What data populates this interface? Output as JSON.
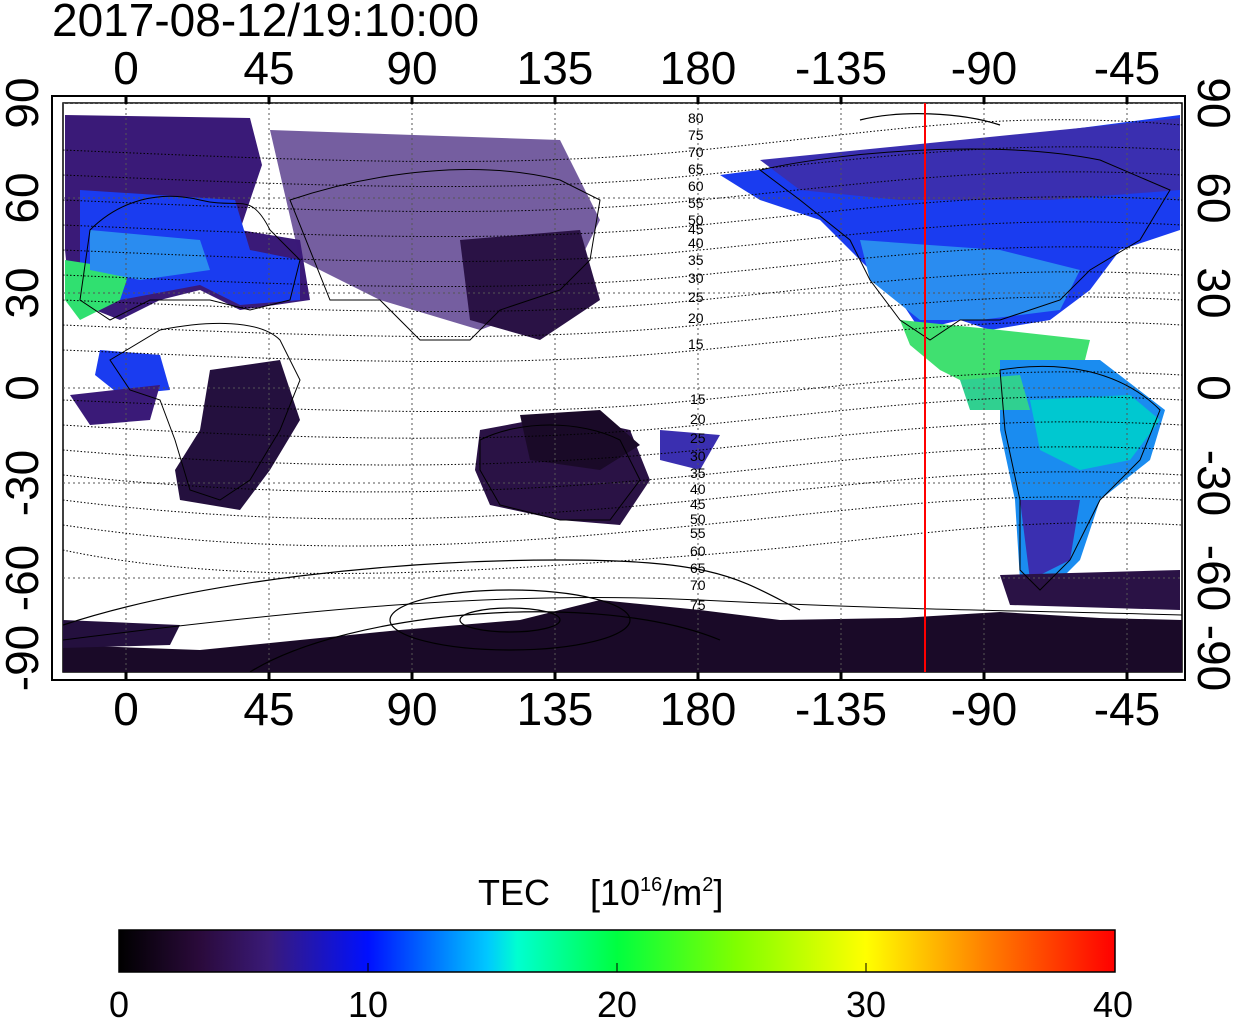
{
  "timestamp": "2017-08-12/19:10:00",
  "top_lon_labels": [
    "0",
    "45",
    "90",
    "135",
    "180",
    "-135",
    "-90",
    "-45"
  ],
  "bottom_lon_labels": [
    "0",
    "45",
    "90",
    "135",
    "180",
    "-135",
    "-90",
    "-45"
  ],
  "left_lat_labels": [
    "90",
    "60",
    "30",
    "0",
    "-30",
    "-60",
    "-90"
  ],
  "right_lat_labels": [
    "90",
    "60",
    "30",
    "0",
    "-30",
    "-60",
    "-90"
  ],
  "contour_labels_north": [
    "80",
    "75",
    "70",
    "65",
    "60",
    "55",
    "50",
    "45",
    "40",
    "35",
    "30",
    "25",
    "20",
    "15"
  ],
  "contour_labels_south": [
    "15",
    "20",
    "25",
    "30",
    "35",
    "40",
    "45",
    "50",
    "55",
    "60",
    "65",
    "70",
    "75"
  ],
  "colorbar": {
    "title": "TEC",
    "unit_base": "[10",
    "unit_exp": "16",
    "unit_mid": "/m",
    "unit_sq": "2",
    "unit_end": "]",
    "ticks": [
      "0",
      "10",
      "20",
      "30",
      "40"
    ],
    "min": 0,
    "max": 40
  },
  "map": {
    "lon_center": 160,
    "lat_range": [
      -90,
      90
    ],
    "terminator_lon": -110,
    "terminator_color": "#ff0000"
  },
  "colors": {
    "frame": "#000000",
    "grid": "#555555"
  }
}
